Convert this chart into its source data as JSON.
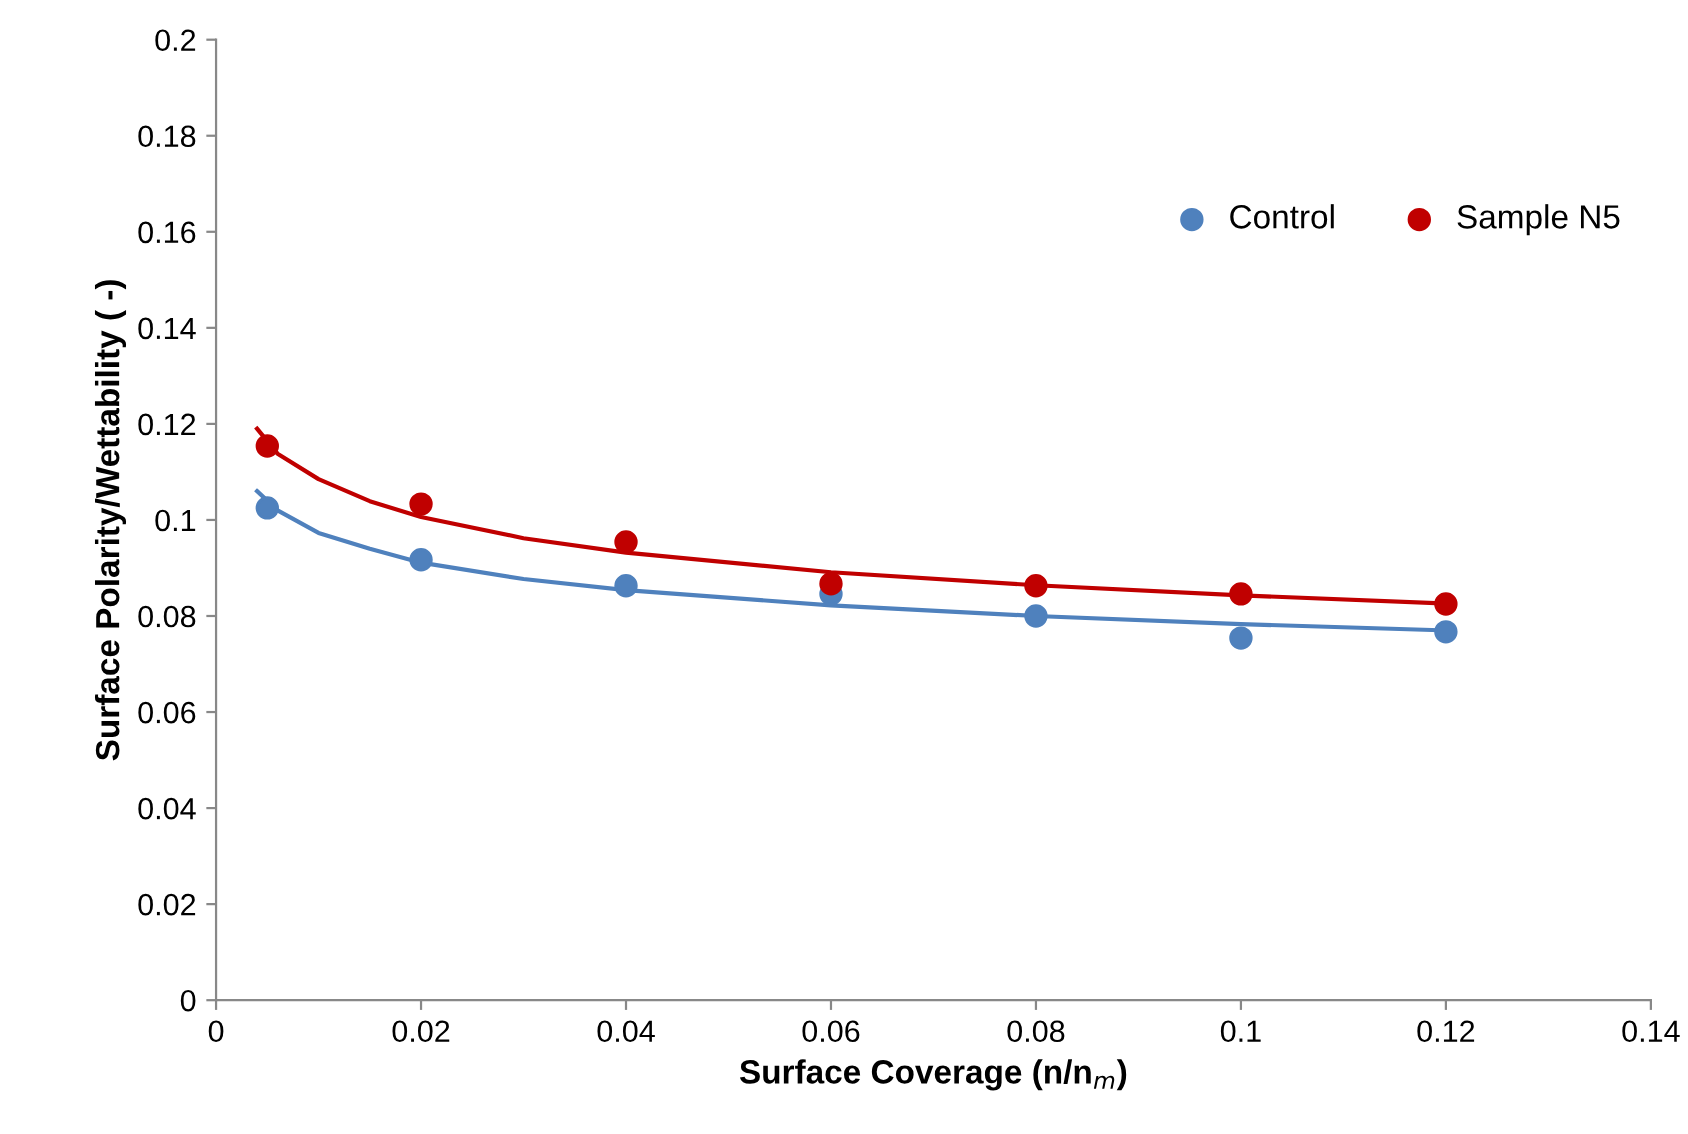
{
  "chart_data": {
    "type": "scatter",
    "xlabel": "Surface Coverage (n/n$_{m}$)",
    "ylabel": "Surface Polarity/Wettability ( -)",
    "x": [
      0.005,
      0.02,
      0.04,
      0.06,
      0.08,
      0.1,
      0.12
    ],
    "series": [
      {
        "name": "Control",
        "color": "#4f81bd",
        "marker": "circle",
        "values": [
          0.1025,
          0.0917,
          0.0863,
          0.0846,
          0.08,
          0.0754,
          0.0767
        ]
      },
      {
        "name": "Sample N5",
        "color": "#c00000",
        "marker": "circle",
        "values": [
          0.1154,
          0.1033,
          0.0954,
          0.0867,
          0.0863,
          0.0846,
          0.0825
        ]
      },
      {
        "type": "line",
        "color": "#4f81bd",
        "marker": "none",
        "x": [
          0.004,
          0.006,
          0.01,
          0.015,
          0.02,
          0.03,
          0.04,
          0.06,
          0.08,
          0.1,
          0.12
        ],
        "values": [
          0.106,
          0.102,
          0.0973,
          0.094,
          0.0911,
          0.0877,
          0.0854,
          0.0822,
          0.08,
          0.0783,
          0.077
        ]
      },
      {
        "type": "line",
        "color": "#c00000",
        "marker": "none",
        "x": [
          0.004,
          0.006,
          0.01,
          0.015,
          0.02,
          0.03,
          0.04,
          0.06,
          0.08,
          0.1,
          0.12
        ],
        "values": [
          0.119,
          0.1138,
          0.1085,
          0.1039,
          0.1006,
          0.0962,
          0.0932,
          0.0891,
          0.0864,
          0.0843,
          0.0826
        ]
      }
    ],
    "xlim": [
      0,
      0.14
    ],
    "xticks": [
      0,
      0.02,
      0.04,
      0.06,
      0.08,
      0.1,
      0.12,
      0.14
    ],
    "ylim": [
      0,
      0.2
    ],
    "yticks": [
      0,
      0.02,
      0.04,
      0.06,
      0.08,
      0.1,
      0.12,
      0.14,
      0.16,
      0.18,
      0.2
    ],
    "legend": "top right",
    "grid": false
  }
}
